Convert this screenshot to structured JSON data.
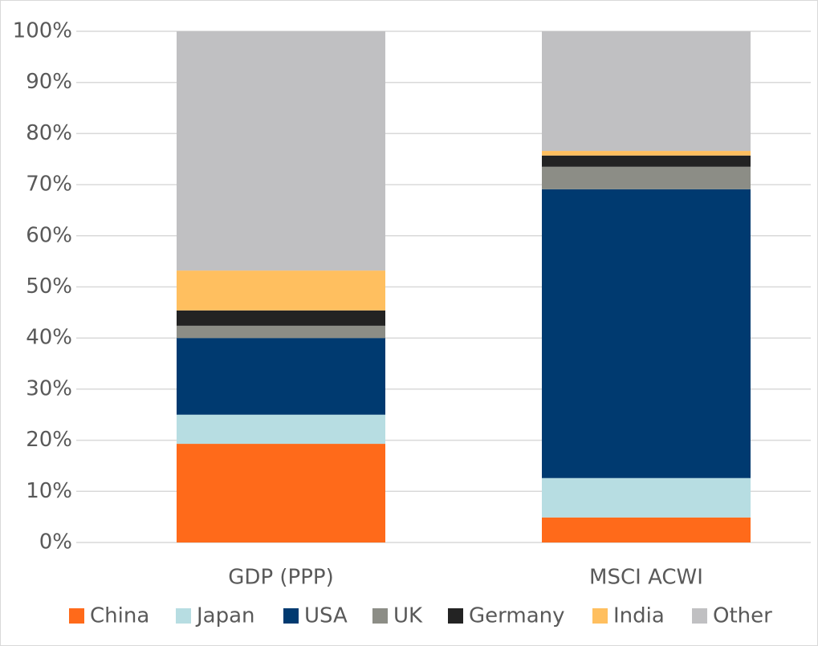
{
  "chart_data": {
    "type": "stacked-bar",
    "categories": [
      "GDP (PPP)",
      "MSCI ACWI"
    ],
    "series": [
      {
        "name": "China",
        "color": "#ff6a1a",
        "values": [
          19.3,
          4.9
        ]
      },
      {
        "name": "Japan",
        "color": "#b7dde2",
        "values": [
          5.7,
          7.7
        ]
      },
      {
        "name": "USA",
        "color": "#003a70",
        "values": [
          15.0,
          56.5
        ]
      },
      {
        "name": "UK",
        "color": "#8c8d86",
        "values": [
          2.4,
          4.4
        ]
      },
      {
        "name": "Germany",
        "color": "#232323",
        "values": [
          3.0,
          2.2
        ]
      },
      {
        "name": "India",
        "color": "#ffbf5f",
        "values": [
          7.8,
          0.9
        ]
      },
      {
        "name": "Other",
        "color": "#c0c0c2",
        "values": [
          46.8,
          23.4
        ]
      }
    ],
    "ylim": [
      0,
      100
    ],
    "yticks": [
      {
        "value": 0,
        "label": "0%"
      },
      {
        "value": 10,
        "label": "10%"
      },
      {
        "value": 20,
        "label": "20%"
      },
      {
        "value": 30,
        "label": "30%"
      },
      {
        "value": 40,
        "label": "40%"
      },
      {
        "value": 50,
        "label": "50%"
      },
      {
        "value": 60,
        "label": "60%"
      },
      {
        "value": 70,
        "label": "70%"
      },
      {
        "value": 80,
        "label": "80%"
      },
      {
        "value": 90,
        "label": "90%"
      },
      {
        "value": 100,
        "label": "100%"
      }
    ],
    "grid": true,
    "legend": "bottom"
  }
}
